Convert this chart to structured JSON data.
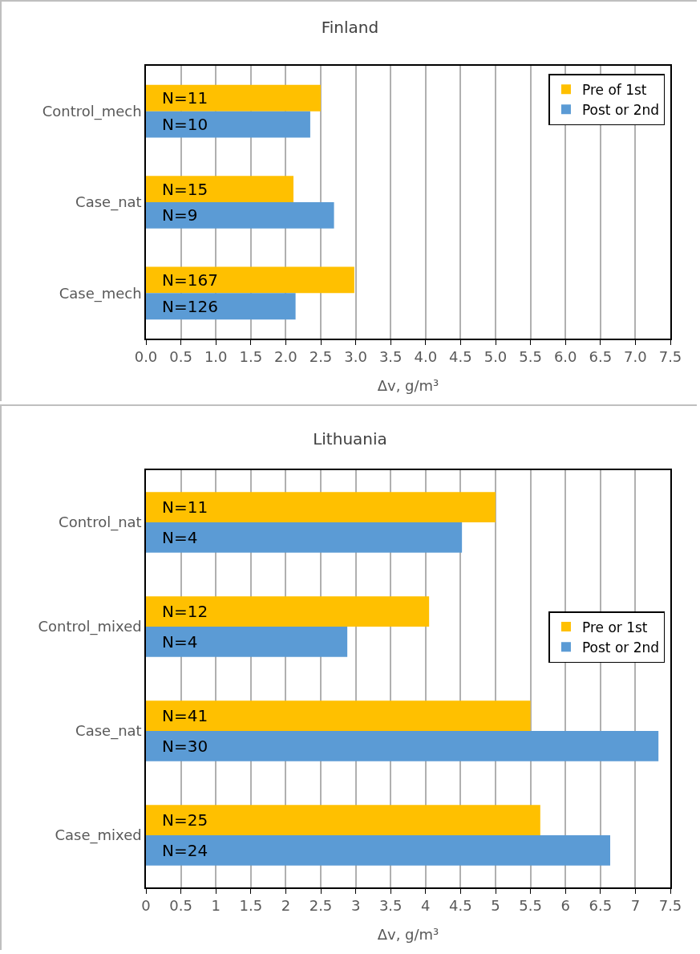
{
  "chart_data": [
    {
      "type": "bar",
      "orientation": "horizontal",
      "title": "Finland",
      "xlabel": "Δv, g/m³",
      "categories": [
        "Control_mech",
        "Case_nat",
        "Case_mech"
      ],
      "series": [
        {
          "name": "Pre of 1st",
          "color": "#ffc000",
          "values": [
            2.5,
            2.11,
            2.98
          ]
        },
        {
          "name": "Post or 2nd",
          "color": "#5b9bd5",
          "values": [
            2.35,
            2.69,
            2.14
          ]
        }
      ],
      "annotations": [
        "N=11",
        "N=10",
        "N=15",
        "N=9",
        "N=167",
        "N=126"
      ],
      "xlim": [
        0,
        7.5
      ],
      "xticks": [
        {
          "value": 0,
          "label": "0.0"
        },
        {
          "value": 0.5,
          "label": "0.5"
        },
        {
          "value": 1,
          "label": "1.0"
        },
        {
          "value": 1.5,
          "label": "1.5"
        },
        {
          "value": 2,
          "label": "2.0"
        },
        {
          "value": 2.5,
          "label": "2.5"
        },
        {
          "value": 3,
          "label": "3.0"
        },
        {
          "value": 3.5,
          "label": "3.5"
        },
        {
          "value": 4,
          "label": "4.0"
        },
        {
          "value": 4.5,
          "label": "4.5"
        },
        {
          "value": 5,
          "label": "5.0"
        },
        {
          "value": 5.5,
          "label": "5.5"
        },
        {
          "value": 6,
          "label": "6.0"
        },
        {
          "value": 6.5,
          "label": "6.5"
        },
        {
          "value": 7,
          "label": "7.0"
        },
        {
          "value": 7.5,
          "label": "7.5"
        }
      ],
      "grid": "x",
      "legend": "top right"
    },
    {
      "type": "bar",
      "orientation": "horizontal",
      "title": "Lithuania",
      "xlabel": "Δv, g/m³",
      "categories": [
        "Control_nat",
        "Control_mixed",
        "Case_nat",
        "Case_mixed"
      ],
      "series": [
        {
          "name": "Pre or 1st",
          "color": "#ffc000",
          "values": [
            5.0,
            4.05,
            5.5,
            5.64
          ]
        },
        {
          "name": "Post or 2nd",
          "color": "#5b9bd5",
          "values": [
            4.52,
            2.88,
            7.33,
            6.64
          ]
        }
      ],
      "annotations": [
        "N=11",
        "N=4",
        "N=12",
        "N=4",
        "N=41",
        "N=30",
        "N=25",
        "N=24"
      ],
      "xlim": [
        0,
        7.5
      ],
      "xticks": [
        0,
        0.5,
        1,
        1.5,
        2,
        2.5,
        3,
        3.5,
        4,
        4.5,
        5,
        5.5,
        6,
        6.5,
        7,
        7.5
      ],
      "grid": "x",
      "legend": "right"
    }
  ]
}
